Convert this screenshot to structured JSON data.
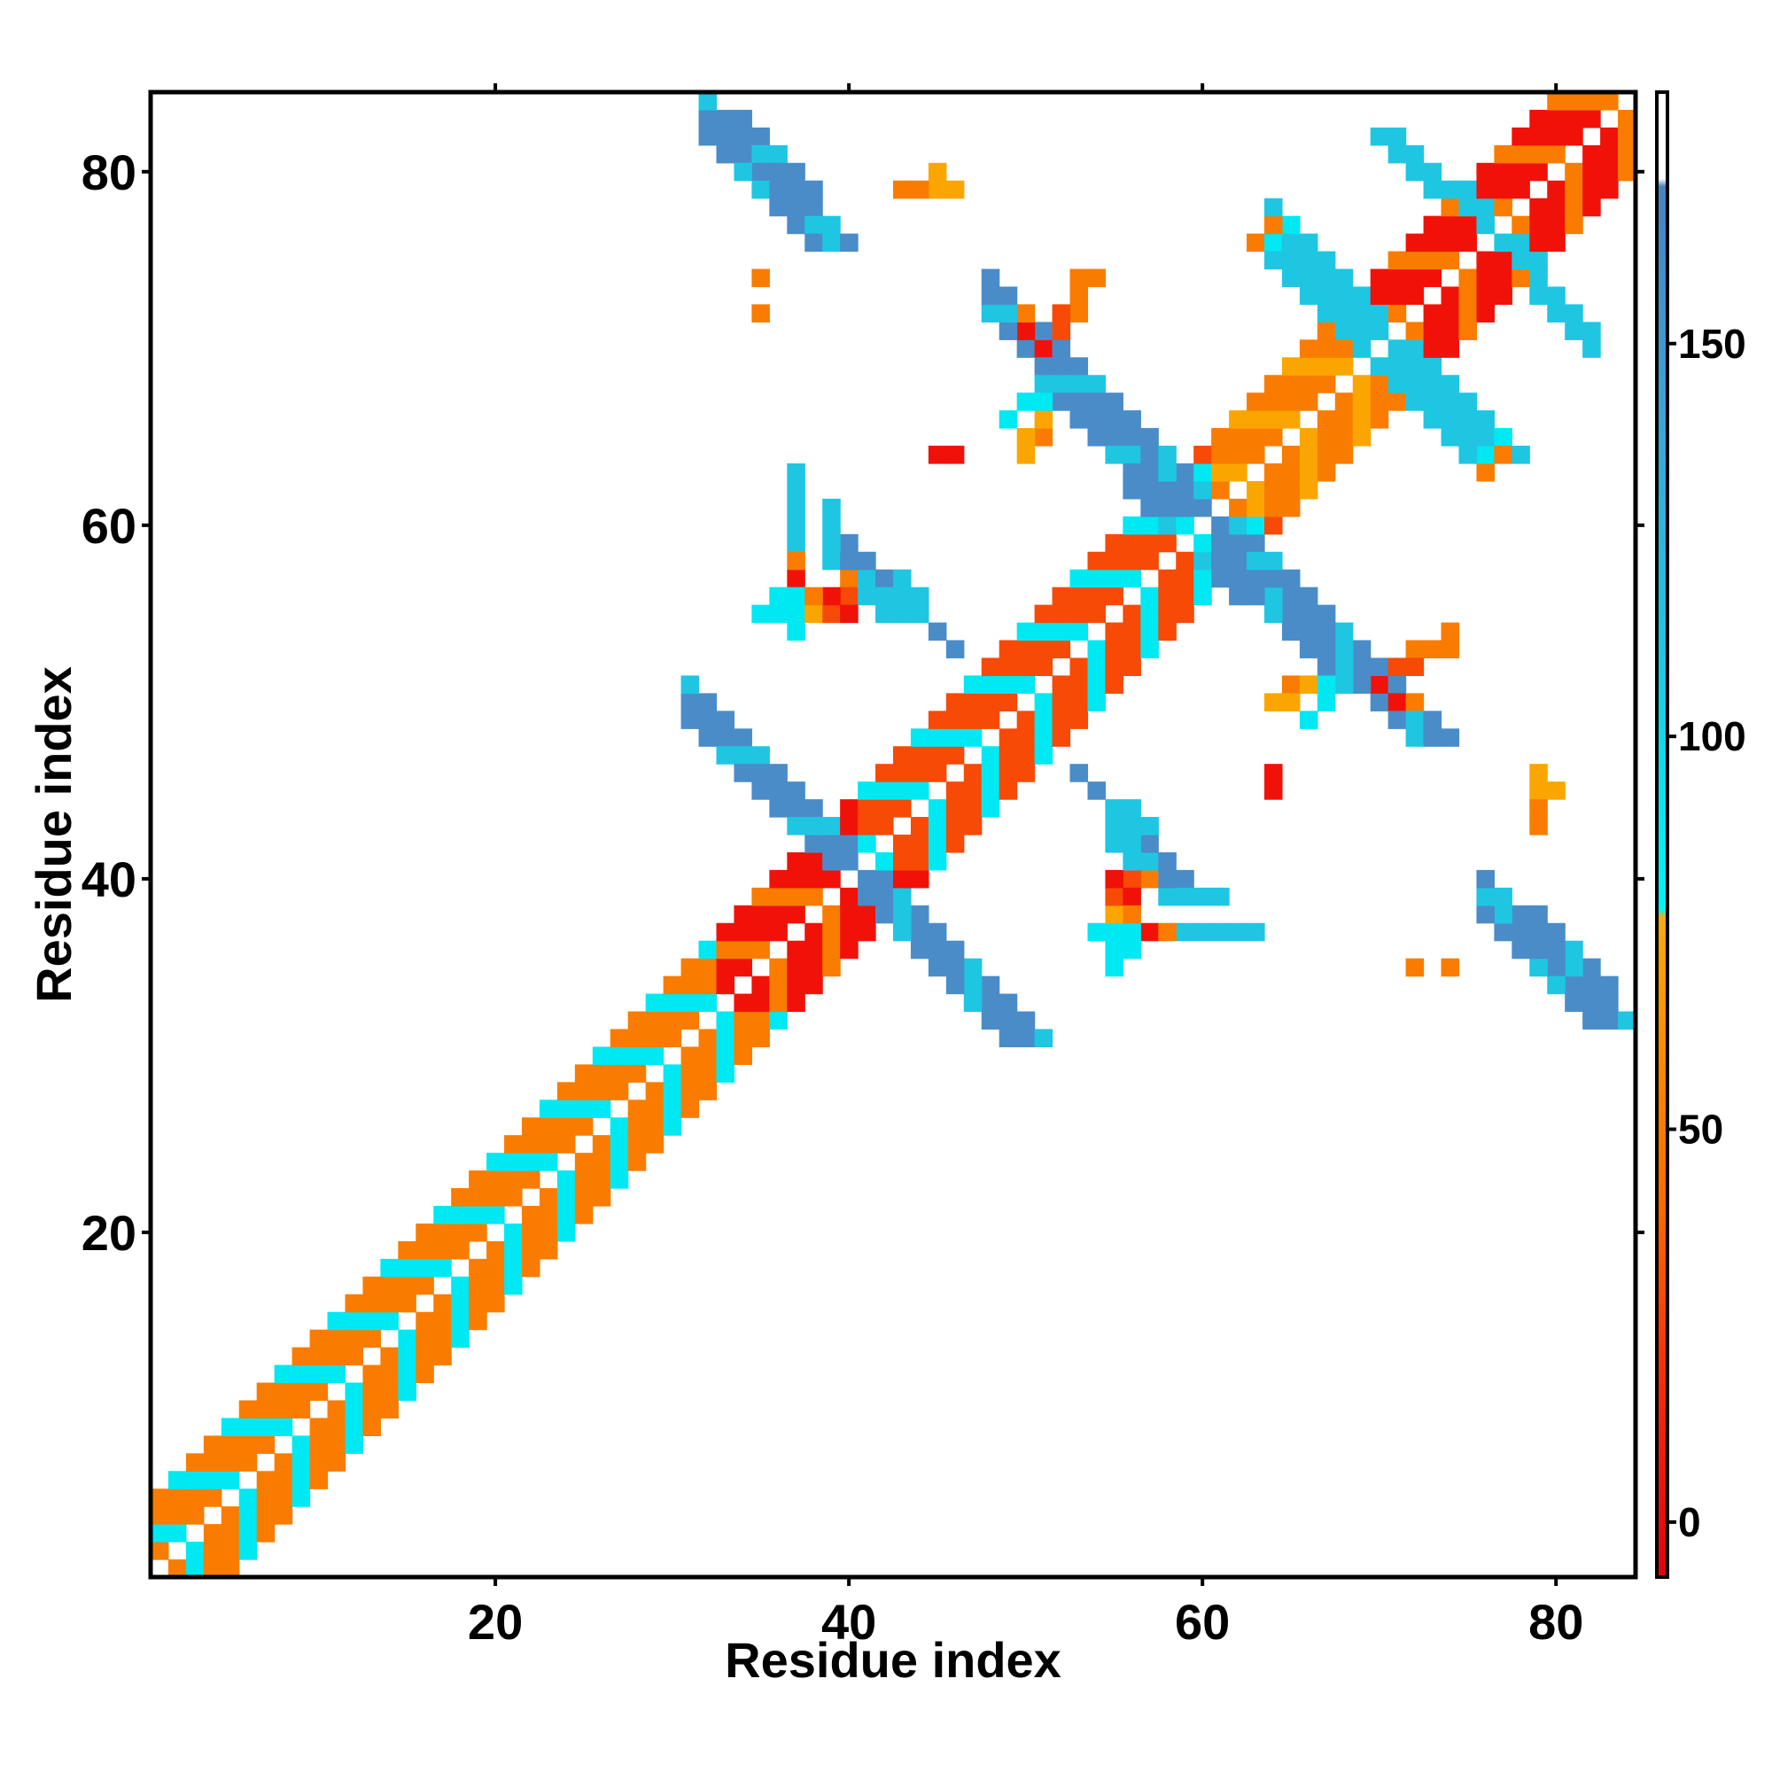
{
  "chart_data": {
    "type": "heatmap",
    "xlabel": "Residue index",
    "ylabel": "Residue index",
    "x_ticks": [
      20,
      40,
      60,
      80
    ],
    "y_ticks": [
      20,
      40,
      60,
      80
    ],
    "xlim": [
      0.5,
      84.5
    ],
    "ylim": [
      0.5,
      84.5
    ],
    "colorbar": {
      "ticks": [
        0,
        50,
        100,
        150
      ],
      "range": [
        -7,
        182
      ],
      "stops": [
        {
          "value": -7,
          "color": "#e0000f"
        },
        {
          "value": 20,
          "color": "#f6300a"
        },
        {
          "value": 40,
          "color": "#fb6a00"
        },
        {
          "value": 60,
          "color": "#fb8c00"
        },
        {
          "value": 77,
          "color": "#fbaa10"
        },
        {
          "value": 78,
          "color": "#00f6f6"
        },
        {
          "value": 110,
          "color": "#1ec8e0"
        },
        {
          "value": 140,
          "color": "#3aa6d4"
        },
        {
          "value": 170,
          "color": "#4683c0"
        },
        {
          "value": 171,
          "color": "#ffffff"
        },
        {
          "value": 182,
          "color": "#ffffff"
        }
      ]
    },
    "colors": {
      "red": "#f01208",
      "red_orange": "#f64a06",
      "orange": "#f97c00",
      "amber": "#fba600",
      "cyan": "#00e8f2",
      "sky": "#1ec6e2",
      "steel": "#4a8cc8",
      "slate": "#4a78b8"
    },
    "helices": [
      {
        "start": 1,
        "end": 32,
        "main": "orange",
        "alt": "cyan"
      },
      {
        "start": 33,
        "end": 40,
        "main": "red",
        "alt": "orange"
      },
      {
        "start": 41,
        "end": 60,
        "main": "red_orange",
        "alt": "cyan"
      },
      {
        "start": 61,
        "end": 68,
        "main": "orange",
        "alt": "amber"
      },
      {
        "start": 69,
        "end": 84,
        "main": "red",
        "alt": "orange"
      }
    ],
    "strands": [
      {
        "x": [
          31,
          49
        ],
        "y": [
          49,
          31
        ],
        "width": 3,
        "color": "steel"
      },
      {
        "x": [
          50,
          60
        ],
        "y": [
          70,
          60
        ],
        "width": 3,
        "color": "steel"
      },
      {
        "x": [
          60,
          72
        ],
        "y": [
          58,
          48
        ],
        "width": 3,
        "color": "steel"
      },
      {
        "x": [
          63,
          76
        ],
        "y": [
          76,
          64
        ],
        "width": 3,
        "color": "sky"
      },
      {
        "x": [
          32,
          38
        ],
        "y": [
          83,
          76
        ],
        "width": 3,
        "color": "steel"
      },
      {
        "x": [
          77,
          82
        ],
        "y": [
          38,
          32
        ],
        "width": 3,
        "color": "steel"
      },
      {
        "x": [
          70,
          77
        ],
        "y": [
          82,
          76
        ],
        "width": 2,
        "color": "sky"
      }
    ],
    "spots": [
      [
        45,
        79,
        "amber"
      ],
      [
        44,
        79,
        "orange"
      ],
      [
        46,
        79,
        "amber"
      ],
      [
        45,
        80,
        "amber"
      ],
      [
        35,
        72,
        "orange"
      ],
      [
        53,
        72,
        "orange"
      ],
      [
        52,
        71,
        "red_orange"
      ],
      [
        51,
        70,
        "red"
      ],
      [
        46,
        64,
        "red"
      ],
      [
        64,
        76,
        "cyan"
      ],
      [
        63,
        76,
        "orange"
      ],
      [
        37,
        59,
        "sky"
      ],
      [
        37,
        60,
        "sky"
      ],
      [
        37,
        61,
        "sky"
      ],
      [
        37,
        62,
        "sky"
      ],
      [
        39,
        60,
        "sky"
      ],
      [
        39,
        58,
        "sky"
      ],
      [
        40,
        57,
        "steel"
      ],
      [
        41,
        57,
        "steel"
      ],
      [
        42,
        57,
        "steel"
      ],
      [
        37,
        57,
        "orange"
      ],
      [
        37,
        56,
        "red"
      ],
      [
        40,
        56,
        "amber"
      ],
      [
        35,
        55,
        "cyan"
      ],
      [
        36,
        55,
        "cyan"
      ],
      [
        37,
        55,
        "cyan"
      ],
      [
        38,
        55,
        "amber"
      ],
      [
        39,
        55,
        "red_orange"
      ],
      [
        40,
        55,
        "red"
      ],
      [
        37,
        54,
        "cyan"
      ],
      [
        42,
        55,
        "sky"
      ],
      [
        43,
        55,
        "sky"
      ],
      [
        44,
        55,
        "sky"
      ],
      [
        44,
        56,
        "sky"
      ],
      [
        46,
        53,
        "steel"
      ],
      [
        54,
        45,
        "steel"
      ],
      [
        56,
        43,
        "sky"
      ],
      [
        57,
        43,
        "sky"
      ],
      [
        56,
        42,
        "sky"
      ],
      [
        56,
        41,
        "sky"
      ],
      [
        57,
        41,
        "sky"
      ],
      [
        58,
        41,
        "steel"
      ],
      [
        58,
        40,
        "steel"
      ],
      [
        59,
        40,
        "steel"
      ],
      [
        59,
        39,
        "sky"
      ],
      [
        56,
        40,
        "red_orange"
      ],
      [
        57,
        40,
        "orange"
      ],
      [
        56,
        39,
        "red"
      ],
      [
        56,
        38,
        "orange"
      ],
      [
        55,
        37,
        "cyan"
      ],
      [
        56,
        37,
        "cyan"
      ],
      [
        57,
        37,
        "red"
      ],
      [
        58,
        37,
        "orange"
      ],
      [
        56,
        36,
        "cyan"
      ],
      [
        61,
        39,
        "sky"
      ],
      [
        61,
        37,
        "sky"
      ],
      [
        62,
        37,
        "sky"
      ],
      [
        63,
        37,
        "sky"
      ],
      [
        64,
        45,
        "red"
      ],
      [
        79,
        46,
        "amber"
      ],
      [
        80,
        45,
        "amber"
      ],
      [
        79,
        45,
        "amber"
      ],
      [
        79,
        44,
        "orange"
      ],
      [
        79,
        43,
        "orange"
      ],
      [
        65,
        51,
        "orange"
      ],
      [
        66,
        51,
        "amber"
      ],
      [
        67,
        50,
        "cyan"
      ],
      [
        67,
        51,
        "cyan"
      ],
      [
        72,
        52,
        "red_orange"
      ],
      [
        73,
        53,
        "orange"
      ],
      [
        74,
        53,
        "orange"
      ],
      [
        74,
        54,
        "orange"
      ],
      [
        72,
        53,
        "orange"
      ],
      [
        72,
        50,
        "orange"
      ],
      [
        71,
        50,
        "red"
      ],
      [
        77,
        64,
        "orange"
      ],
      [
        77,
        65,
        "cyan"
      ],
      [
        74,
        35,
        "orange"
      ],
      [
        49,
        66,
        "cyan"
      ],
      [
        50,
        65,
        "amber"
      ],
      [
        50,
        64,
        "amber"
      ]
    ]
  }
}
